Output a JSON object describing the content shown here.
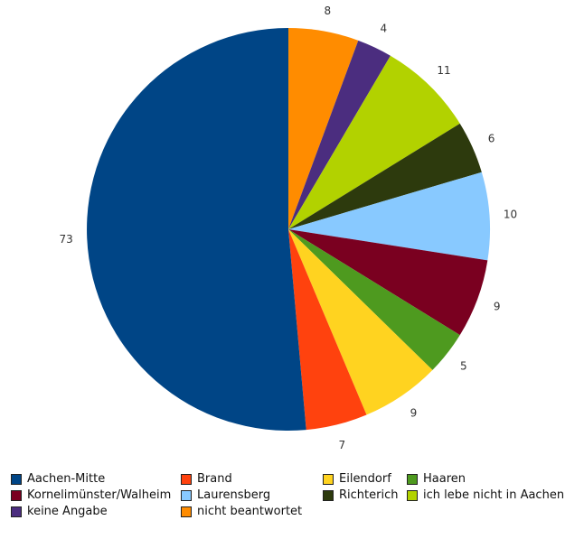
{
  "chart_data": {
    "type": "pie",
    "title": "",
    "start_angle_deg": 0,
    "direction": "clockwise",
    "slices": [
      {
        "label": "nicht beantwortet",
        "value": 8,
        "color": "#ff8c00"
      },
      {
        "label": "keine Angabe",
        "value": 4,
        "color": "#4b2d7f"
      },
      {
        "label": "ich lebe nicht in Aachen",
        "value": 11,
        "color": "#b2d200"
      },
      {
        "label": "Richterich",
        "value": 6,
        "color": "#2d3a0d"
      },
      {
        "label": "Laurensberg",
        "value": 10,
        "color": "#88c9ff"
      },
      {
        "label": "Kornelimünster/Walheim",
        "value": 9,
        "color": "#7a0020"
      },
      {
        "label": "Haaren",
        "value": 5,
        "color": "#4e9a1f"
      },
      {
        "label": "Eilendorf",
        "value": 9,
        "color": "#ffd320"
      },
      {
        "label": "Brand",
        "value": 7,
        "color": "#ff420e"
      },
      {
        "label": "Aachen-Mitte",
        "value": 73,
        "color": "#004586"
      }
    ],
    "legend_order": [
      "Aachen-Mitte",
      "Brand",
      "Eilendorf",
      "Haaren",
      "Kornelimünster/Walheim",
      "Laurensberg",
      "Richterich",
      "ich lebe nicht in Aachen",
      "keine Angabe",
      "nicht beantwortet"
    ],
    "legend_position": "bottom"
  }
}
